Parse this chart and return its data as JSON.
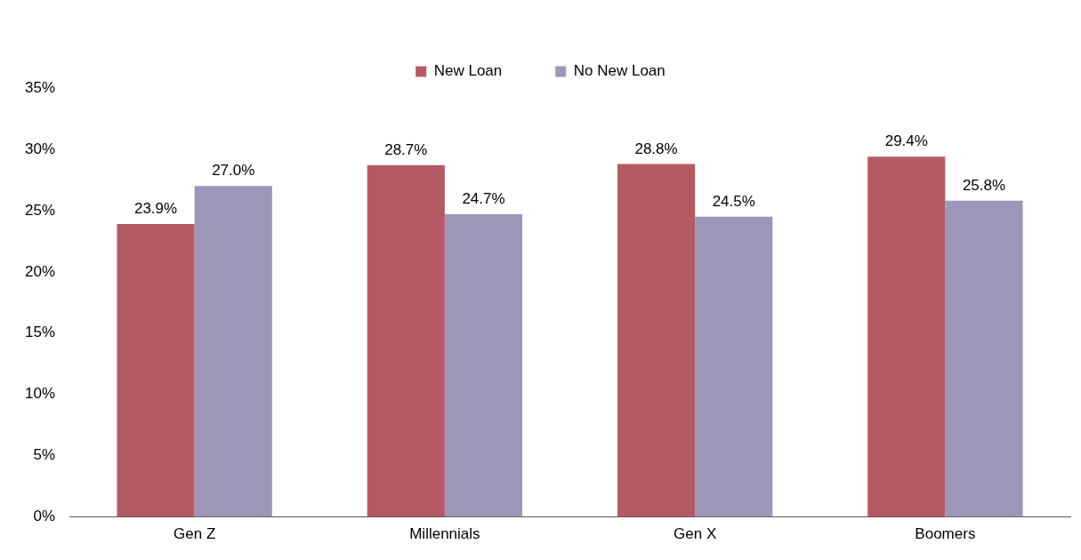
{
  "chart_data": {
    "type": "bar",
    "categories": [
      "Gen Z",
      "Millennials",
      "Gen X",
      "Boomers"
    ],
    "series": [
      {
        "name": "New Loan",
        "color": "#b55a65",
        "values": [
          23.9,
          28.7,
          28.8,
          29.4
        ],
        "value_labels": [
          "23.9%",
          "28.7%",
          "28.8%",
          "29.4%"
        ]
      },
      {
        "name": "No New Loan",
        "color": "#9e96b8",
        "values": [
          27.0,
          24.7,
          24.5,
          25.8
        ],
        "value_labels": [
          "27.0%",
          "24.7%",
          "24.5%",
          "25.8%"
        ]
      }
    ],
    "ylim": [
      0,
      35
    ],
    "yticks": [
      {
        "value": 0,
        "label": "0%"
      },
      {
        "value": 5,
        "label": "5%"
      },
      {
        "value": 10,
        "label": "10%"
      },
      {
        "value": 15,
        "label": "15%"
      },
      {
        "value": 20,
        "label": "20%"
      },
      {
        "value": 25,
        "label": "25%"
      },
      {
        "value": 30,
        "label": "30%"
      },
      {
        "value": 35,
        "label": "35%"
      }
    ],
    "grid": false,
    "legend": "top"
  }
}
